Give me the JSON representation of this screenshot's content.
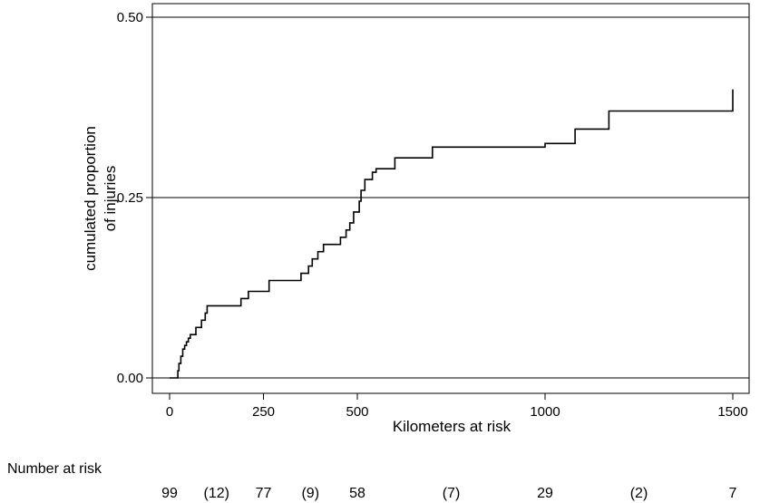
{
  "chart_data": {
    "type": "line",
    "step": true,
    "title": "",
    "xlabel": "Kilometers at risk",
    "ylabel_lines": [
      "cumulated proportion",
      "of injuries"
    ],
    "xlim": [
      -30,
      1500
    ],
    "ylim": [
      -0.02,
      0.5
    ],
    "xticks": [
      0,
      250,
      500,
      1000,
      1500
    ],
    "xtick_labels": [
      "0",
      "250",
      "500",
      "1000",
      "1500"
    ],
    "yticks": [
      0,
      0.25,
      0.5
    ],
    "ytick_labels": [
      "0.00",
      "0.25",
      "0.50"
    ],
    "grid": "horizontal",
    "series": [
      {
        "x": [
          0,
          18,
          22,
          25,
          30,
          35,
          40,
          45,
          50,
          55,
          60,
          70,
          85,
          95,
          100,
          180,
          190,
          210,
          235,
          265,
          300,
          350,
          370,
          380,
          395,
          410,
          455,
          470,
          480,
          490,
          505,
          510,
          520,
          540,
          550,
          600,
          700,
          1000,
          1080,
          1170,
          1500
        ],
        "y": [
          0,
          0,
          0.01,
          0.02,
          0.03,
          0.04,
          0.045,
          0.05,
          0.055,
          0.06,
          0.06,
          0.07,
          0.08,
          0.09,
          0.1,
          0.1,
          0.11,
          0.12,
          0.12,
          0.135,
          0.135,
          0.145,
          0.155,
          0.165,
          0.175,
          0.185,
          0.195,
          0.205,
          0.215,
          0.23,
          0.245,
          0.26,
          0.275,
          0.285,
          0.29,
          0.305,
          0.32,
          0.325,
          0.345,
          0.37,
          0.4
        ]
      }
    ],
    "risk_table": {
      "label": "Number at risk",
      "entries": [
        {
          "x": 0,
          "text": "99"
        },
        {
          "x": 125,
          "text": "(12)"
        },
        {
          "x": 250,
          "text": "77"
        },
        {
          "x": 375,
          "text": "(9)"
        },
        {
          "x": 500,
          "text": "58"
        },
        {
          "x": 750,
          "text": "(7)"
        },
        {
          "x": 1000,
          "text": "29"
        },
        {
          "x": 1250,
          "text": "(2)"
        },
        {
          "x": 1500,
          "text": "7"
        }
      ]
    }
  }
}
